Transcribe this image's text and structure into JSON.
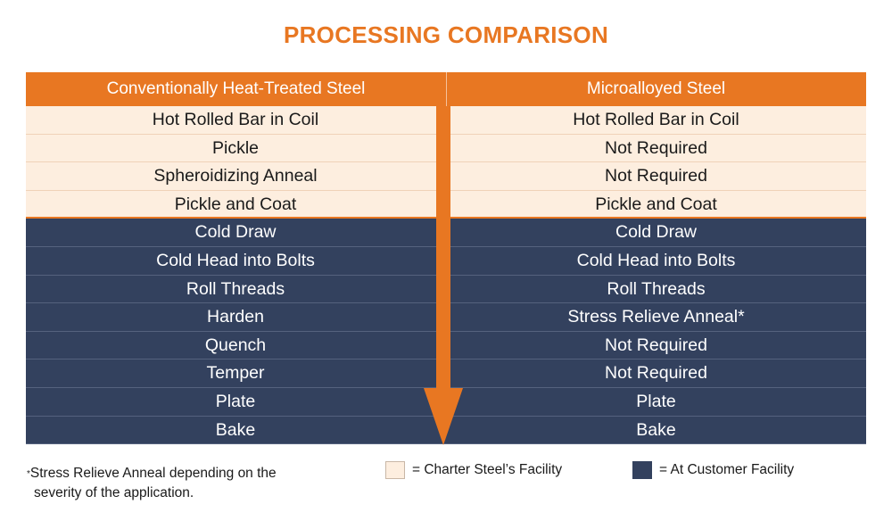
{
  "title": "PROCESSING COMPARISON",
  "colors": {
    "accent": "#e87722",
    "light_fill": "#fdeedf",
    "dark_fill": "#33415e",
    "text_dark": "#1a1a1a",
    "text_light": "#ffffff"
  },
  "table": {
    "headers": [
      "Conventionally Heat-Treated Steel",
      "Microalloyed Steel"
    ],
    "rows": [
      {
        "left": "Hot Rolled Bar in Coil",
        "right": "Hot Rolled Bar in Coil",
        "facility": "charter"
      },
      {
        "left": "Pickle",
        "right": "Not Required",
        "facility": "charter"
      },
      {
        "left": "Spheroidizing Anneal",
        "right": "Not Required",
        "facility": "charter"
      },
      {
        "left": "Pickle and Coat",
        "right": "Pickle and Coat",
        "facility": "charter"
      },
      {
        "left": "Cold Draw",
        "right": "Cold Draw",
        "facility": "customer"
      },
      {
        "left": "Cold Head into Bolts",
        "right": "Cold Head into Bolts",
        "facility": "customer"
      },
      {
        "left": "Roll Threads",
        "right": "Roll Threads",
        "facility": "customer"
      },
      {
        "left": "Harden",
        "right": "Stress Relieve Anneal*",
        "facility": "customer"
      },
      {
        "left": "Quench",
        "right": "Not Required",
        "facility": "customer"
      },
      {
        "left": "Temper",
        "right": "Not Required",
        "facility": "customer"
      },
      {
        "left": "Plate",
        "right": "Plate",
        "facility": "customer"
      },
      {
        "left": "Bake",
        "right": "Bake",
        "facility": "customer"
      }
    ]
  },
  "footnote": {
    "marker": "*",
    "line1": "Stress Relieve Anneal depending on the",
    "line2": "severity of the application."
  },
  "legend": {
    "charter_label": "= Charter Steel’s Facility",
    "customer_label": "= At Customer Facility"
  }
}
